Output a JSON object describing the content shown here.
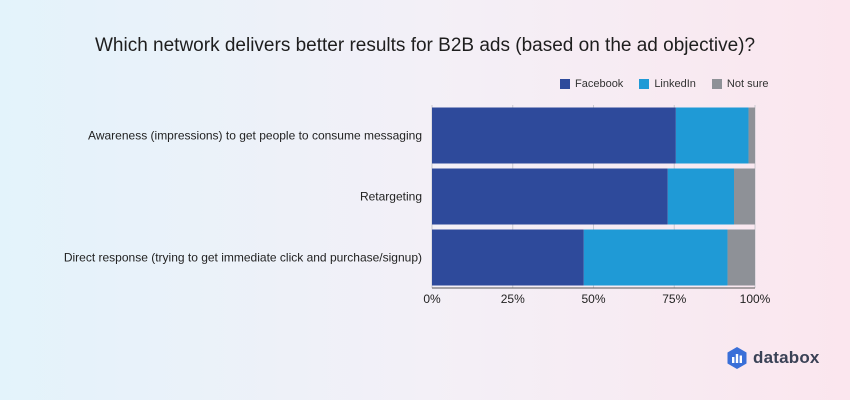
{
  "chart_data": {
    "type": "bar",
    "orientation": "horizontal",
    "stacked": true,
    "title": "Which network delivers better results for B2B ads (based on the ad objective)?",
    "categories": [
      "Awareness (impressions) to get people to consume messaging",
      "Retargeting",
      "Direct response (trying to get immediate click and purchase/signup)"
    ],
    "series": [
      {
        "name": "Facebook",
        "color": "#2e4a9b",
        "values": [
          75.5,
          73,
          47
        ]
      },
      {
        "name": "LinkedIn",
        "color": "#1f9ad6",
        "values": [
          22.5,
          20.5,
          44.5
        ]
      },
      {
        "name": "Not sure",
        "color": "#8e9197",
        "values": [
          2,
          6.5,
          8.5
        ]
      }
    ],
    "x_ticks": [
      "0%",
      "25%",
      "50%",
      "75%",
      "100%"
    ],
    "xlim": [
      0,
      100
    ],
    "xlabel": "",
    "ylabel": "",
    "grid": true,
    "legend_position": "top-right"
  },
  "brand": {
    "name": "databox",
    "icon": "databox-logo-icon",
    "color": "#3a4256"
  }
}
